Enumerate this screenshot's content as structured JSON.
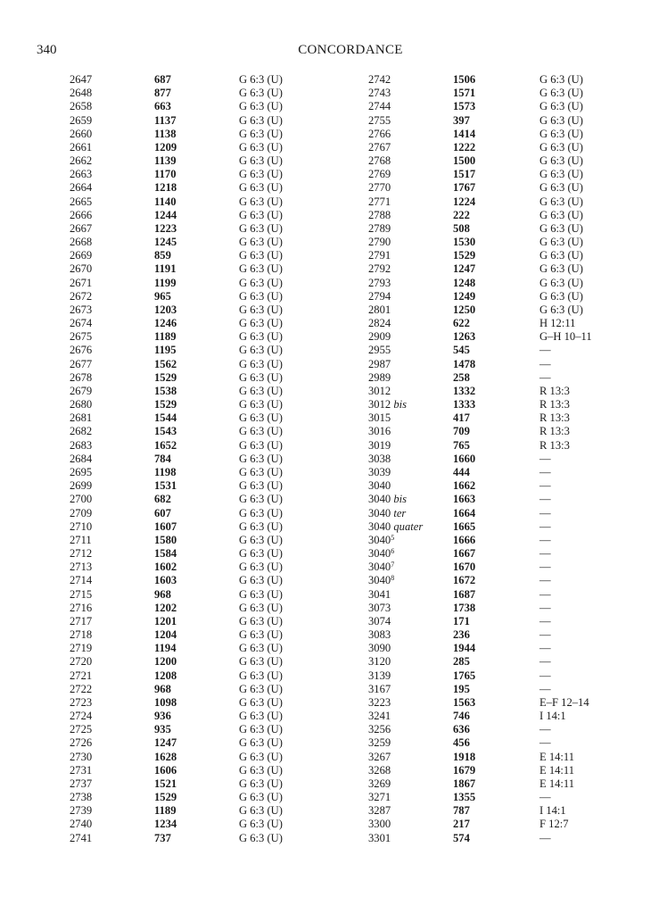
{
  "header": {
    "page_number": "340",
    "title": "CONCORDANCE"
  },
  "columns": [
    {
      "rows": [
        {
          "num": "2647",
          "bold": "687",
          "ref": "G 6:3 (U)"
        },
        {
          "num": "2648",
          "bold": "877",
          "ref": "G 6:3 (U)"
        },
        {
          "num": "2658",
          "bold": "663",
          "ref": "G 6:3 (U)"
        },
        {
          "num": "2659",
          "bold": "1137",
          "ref": "G 6:3 (U)"
        },
        {
          "num": "2660",
          "bold": "1138",
          "ref": "G 6:3 (U)"
        },
        {
          "num": "2661",
          "bold": "1209",
          "ref": "G 6:3 (U)"
        },
        {
          "num": "2662",
          "bold": "1139",
          "ref": "G 6:3 (U)"
        },
        {
          "num": "2663",
          "bold": "1170",
          "ref": "G 6:3 (U)"
        },
        {
          "num": "2664",
          "bold": "1218",
          "ref": "G 6:3 (U)"
        },
        {
          "num": "2665",
          "bold": "1140",
          "ref": "G 6:3 (U)"
        },
        {
          "num": "2666",
          "bold": "1244",
          "ref": "G 6:3 (U)"
        },
        {
          "num": "2667",
          "bold": "1223",
          "ref": "G 6:3 (U)"
        },
        {
          "num": "2668",
          "bold": "1245",
          "ref": "G 6:3 (U)"
        },
        {
          "num": "2669",
          "bold": "859",
          "ref": "G 6:3 (U)"
        },
        {
          "num": "2670",
          "bold": "1191",
          "ref": "G 6:3 (U)"
        },
        {
          "num": "2671",
          "bold": "1199",
          "ref": "G 6:3 (U)"
        },
        {
          "num": "2672",
          "bold": "965",
          "ref": "G 6:3 (U)"
        },
        {
          "num": "2673",
          "bold": "1203",
          "ref": "G 6:3 (U)"
        },
        {
          "num": "2674",
          "bold": "1246",
          "ref": "G 6:3 (U)"
        },
        {
          "num": "2675",
          "bold": "1189",
          "ref": "G 6:3 (U)"
        },
        {
          "num": "2676",
          "bold": "1195",
          "ref": "G 6:3 (U)"
        },
        {
          "num": "2677",
          "bold": "1562",
          "ref": "G 6:3 (U)"
        },
        {
          "num": "2678",
          "bold": "1529",
          "ref": "G 6:3 (U)"
        },
        {
          "num": "2679",
          "bold": "1538",
          "ref": "G 6:3 (U)"
        },
        {
          "num": "2680",
          "bold": "1529",
          "ref": "G 6:3 (U)"
        },
        {
          "num": "2681",
          "bold": "1544",
          "ref": "G 6:3 (U)"
        },
        {
          "num": "2682",
          "bold": "1543",
          "ref": "G 6:3 (U)"
        },
        {
          "num": "2683",
          "bold": "1652",
          "ref": "G 6:3 (U)"
        },
        {
          "num": "2684",
          "bold": "784",
          "ref": "G 6:3 (U)"
        },
        {
          "num": "2695",
          "bold": "1198",
          "ref": "G 6:3 (U)"
        },
        {
          "num": "2699",
          "bold": "1531",
          "ref": "G 6:3 (U)"
        },
        {
          "num": "2700",
          "bold": "682",
          "ref": "G 6:3 (U)"
        },
        {
          "num": "2709",
          "bold": "607",
          "ref": "G 6:3 (U)"
        },
        {
          "num": "2710",
          "bold": "1607",
          "ref": "G 6:3 (U)"
        },
        {
          "num": "2711",
          "bold": "1580",
          "ref": "G 6:3 (U)"
        },
        {
          "num": "2712",
          "bold": "1584",
          "ref": "G 6:3 (U)"
        },
        {
          "num": "2713",
          "bold": "1602",
          "ref": "G 6:3 (U)"
        },
        {
          "num": "2714",
          "bold": "1603",
          "ref": "G 6:3 (U)"
        },
        {
          "num": "2715",
          "bold": "968",
          "ref": "G 6:3 (U)"
        },
        {
          "num": "2716",
          "bold": "1202",
          "ref": "G 6:3 (U)"
        },
        {
          "num": "2717",
          "bold": "1201",
          "ref": "G 6:3 (U)"
        },
        {
          "num": "2718",
          "bold": "1204",
          "ref": "G 6:3 (U)"
        },
        {
          "num": "2719",
          "bold": "1194",
          "ref": "G 6:3 (U)"
        },
        {
          "num": "2720",
          "bold": "1200",
          "ref": "G 6:3 (U)"
        },
        {
          "num": "2721",
          "bold": "1208",
          "ref": "G 6:3 (U)"
        },
        {
          "num": "2722",
          "bold": "968",
          "ref": "G 6:3 (U)"
        },
        {
          "num": "2723",
          "bold": "1098",
          "ref": "G 6:3 (U)"
        },
        {
          "num": "2724",
          "bold": "936",
          "ref": "G 6:3 (U)"
        },
        {
          "num": "2725",
          "bold": "935",
          "ref": "G 6:3 (U)"
        },
        {
          "num": "2726",
          "bold": "1247",
          "ref": "G 6:3 (U)"
        },
        {
          "num": "2730",
          "bold": "1628",
          "ref": "G 6:3 (U)"
        },
        {
          "num": "2731",
          "bold": "1606",
          "ref": "G 6:3 (U)"
        },
        {
          "num": "2737",
          "bold": "1521",
          "ref": "G 6:3 (U)"
        },
        {
          "num": "2738",
          "bold": "1529",
          "ref": "G 6:3 (U)"
        },
        {
          "num": "2739",
          "bold": "1189",
          "ref": "G 6:3 (U)"
        },
        {
          "num": "2740",
          "bold": "1234",
          "ref": "G 6:3 (U)"
        },
        {
          "num": "2741",
          "bold": "737",
          "ref": "G 6:3 (U)"
        }
      ]
    },
    {
      "rows": [
        {
          "num": "2742",
          "bold": "1506",
          "ref": "G 6:3 (U)"
        },
        {
          "num": "2743",
          "bold": "1571",
          "ref": "G 6:3 (U)"
        },
        {
          "num": "2744",
          "bold": "1573",
          "ref": "G 6:3 (U)"
        },
        {
          "num": "2755",
          "bold": "397",
          "ref": "G 6:3 (U)"
        },
        {
          "num": "2766",
          "bold": "1414",
          "ref": "G 6:3 (U)"
        },
        {
          "num": "2767",
          "bold": "1222",
          "ref": "G 6:3 (U)"
        },
        {
          "num": "2768",
          "bold": "1500",
          "ref": "G 6:3 (U)"
        },
        {
          "num": "2769",
          "bold": "1517",
          "ref": "G 6:3 (U)"
        },
        {
          "num": "2770",
          "bold": "1767",
          "ref": "G 6:3 (U)"
        },
        {
          "num": "2771",
          "bold": "1224",
          "ref": "G 6:3 (U)"
        },
        {
          "num": "2788",
          "bold": "222",
          "ref": "G 6:3 (U)"
        },
        {
          "num": "2789",
          "bold": "508",
          "ref": "G 6:3 (U)"
        },
        {
          "num": "2790",
          "bold": "1530",
          "ref": "G 6:3 (U)"
        },
        {
          "num": "2791",
          "bold": "1529",
          "ref": "G 6:3 (U)"
        },
        {
          "num": "2792",
          "bold": "1247",
          "ref": "G 6:3 (U)"
        },
        {
          "num": "2793",
          "bold": "1248",
          "ref": "G 6:3 (U)"
        },
        {
          "num": "2794",
          "bold": "1249",
          "ref": "G 6:3 (U)"
        },
        {
          "num": "2801",
          "bold": "1250",
          "ref": "G 6:3 (U)"
        },
        {
          "num": "2824",
          "bold": "622",
          "ref": "H 12:11"
        },
        {
          "num": "2909",
          "bold": "1263",
          "ref": "G–H 10–11"
        },
        {
          "num": "2955",
          "bold": "545",
          "ref": "—"
        },
        {
          "num": "2987",
          "bold": "1478",
          "ref": "—"
        },
        {
          "num": "2989",
          "bold": "258",
          "ref": "—"
        },
        {
          "num": "3012",
          "bold": "1332",
          "ref": "R 13:3"
        },
        {
          "num": "3012",
          "italic": "bis",
          "bold": "1333",
          "ref": "R 13:3"
        },
        {
          "num": "3015",
          "bold": "417",
          "ref": "R 13:3"
        },
        {
          "num": "3016",
          "bold": "709",
          "ref": "R 13:3"
        },
        {
          "num": "3019",
          "bold": "765",
          "ref": "R 13:3"
        },
        {
          "num": "3038",
          "bold": "1660",
          "ref": "—"
        },
        {
          "num": "3039",
          "bold": "444",
          "ref": "—"
        },
        {
          "num": "3040",
          "bold": "1662",
          "ref": "—"
        },
        {
          "num": "3040",
          "italic": "bis",
          "bold": "1663",
          "ref": "—"
        },
        {
          "num": "3040",
          "italic": "ter",
          "bold": "1664",
          "ref": "—"
        },
        {
          "num": "3040",
          "italic": "quater",
          "bold": "1665",
          "ref": "—"
        },
        {
          "num": "3040",
          "sup": "5",
          "bold": "1666",
          "ref": "—"
        },
        {
          "num": "3040",
          "sup": "6",
          "bold": "1667",
          "ref": "—"
        },
        {
          "num": "3040",
          "sup": "7",
          "bold": "1670",
          "ref": "—"
        },
        {
          "num": "3040",
          "sup": "8",
          "bold": "1672",
          "ref": "—"
        },
        {
          "num": "3041",
          "bold": "1687",
          "ref": "—"
        },
        {
          "num": "3073",
          "bold": "1738",
          "ref": "—"
        },
        {
          "num": "3074",
          "bold": "171",
          "ref": "—"
        },
        {
          "num": "3083",
          "bold": "236",
          "ref": "—"
        },
        {
          "num": "3090",
          "bold": "1944",
          "ref": "—"
        },
        {
          "num": "3120",
          "bold": "285",
          "ref": "—"
        },
        {
          "num": "3139",
          "bold": "1765",
          "ref": "—"
        },
        {
          "num": "3167",
          "bold": "195",
          "ref": "—"
        },
        {
          "num": "3223",
          "bold": "1563",
          "ref": "E–F 12–14"
        },
        {
          "num": "3241",
          "bold": "746",
          "ref": "I 14:1"
        },
        {
          "num": "3256",
          "bold": "636",
          "ref": "—"
        },
        {
          "num": "3259",
          "bold": "456",
          "ref": "—"
        },
        {
          "num": "3267",
          "bold": "1918",
          "ref": "E 14:11"
        },
        {
          "num": "3268",
          "bold": "1679",
          "ref": "E 14:11"
        },
        {
          "num": "3269",
          "bold": "1867",
          "ref": "E 14:11"
        },
        {
          "num": "3271",
          "bold": "1355",
          "ref": "—"
        },
        {
          "num": "3287",
          "bold": "787",
          "ref": "I 14:1"
        },
        {
          "num": "3300",
          "bold": "217",
          "ref": "F 12:7"
        },
        {
          "num": "3301",
          "bold": "574",
          "ref": "—"
        }
      ]
    }
  ]
}
